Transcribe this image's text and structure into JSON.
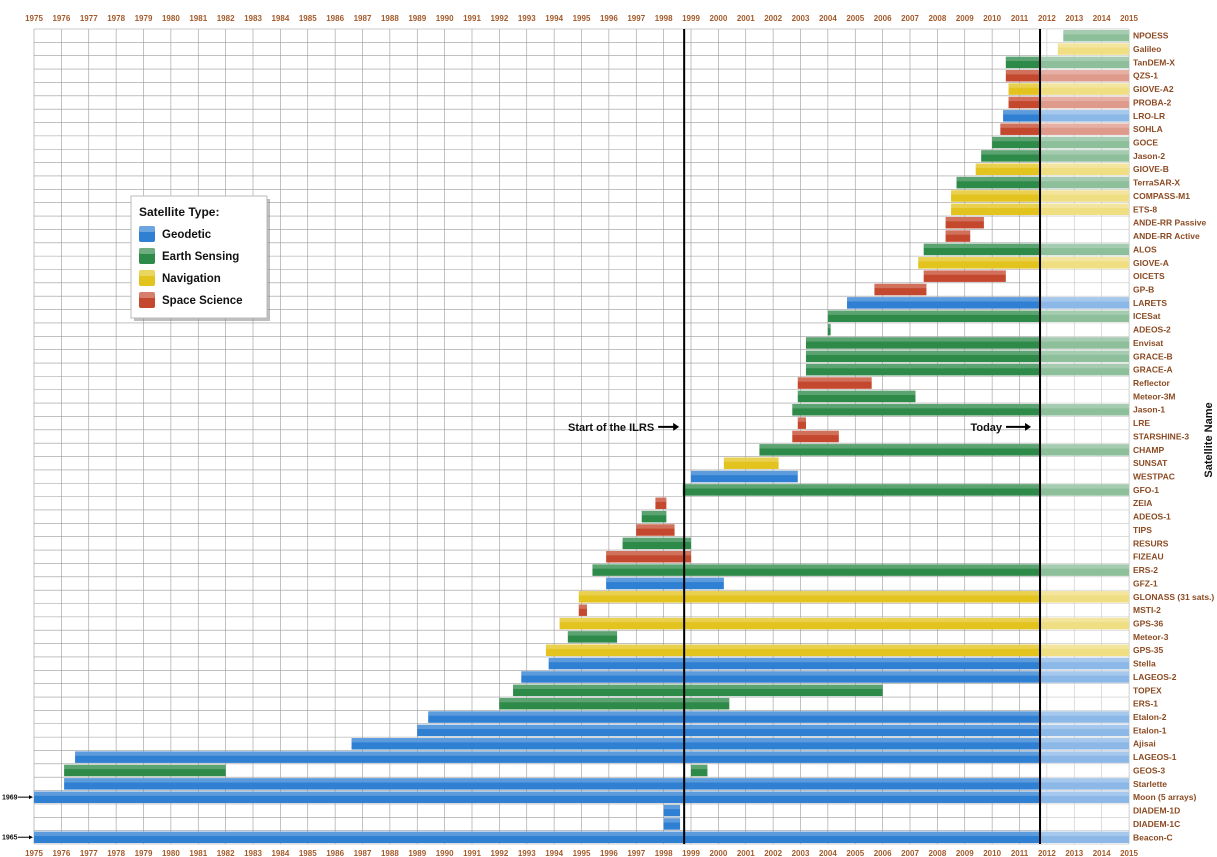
{
  "chart_data": {
    "type": "bar",
    "orientation": "horizontal-timeline",
    "ylabel": "Satellite Name",
    "x_ticks": [
      "1975",
      "1976",
      "1977",
      "1978",
      "1979",
      "1980",
      "1981",
      "1982",
      "1983",
      "1984",
      "1985",
      "1986",
      "1987",
      "1988",
      "1989",
      "1990",
      "1991",
      "1992",
      "1993",
      "1994",
      "1995",
      "1996",
      "1997",
      "1998",
      "1999",
      "2000",
      "2001",
      "2002",
      "2003",
      "2004",
      "2005",
      "2006",
      "2007",
      "2008",
      "2009",
      "2010",
      "2011",
      "2012",
      "2013",
      "2014",
      "2015"
    ],
    "xlim": [
      1975,
      2015
    ],
    "today": 2011.75,
    "ilrs_start": 1998.75,
    "grid": true,
    "legend": {
      "title": "Satellite Type:",
      "placement": "upper-left",
      "items": [
        {
          "key": "geodetic",
          "label": "Geodetic",
          "color": "#2f7fd3"
        },
        {
          "key": "earth",
          "label": "Earth Sensing",
          "color": "#2e8a48"
        },
        {
          "key": "nav",
          "label": "Navigation",
          "color": "#e3c31d"
        },
        {
          "key": "space",
          "label": "Space Science",
          "color": "#c4482d"
        }
      ]
    },
    "annotations": {
      "ilrs": "Start of the ILRS",
      "today": "Today",
      "moon_start": "1969",
      "beacon_start": "1965"
    },
    "satellites": [
      {
        "name": "NPOESS",
        "type": "earth",
        "start": 2012.6,
        "end": 2015
      },
      {
        "name": "Galileo",
        "type": "nav",
        "start": 2012.4,
        "end": 2015
      },
      {
        "name": "TanDEM-X",
        "type": "earth",
        "start": 2010.5,
        "end": 2015
      },
      {
        "name": "QZS-1",
        "type": "space",
        "start": 2010.5,
        "end": 2015
      },
      {
        "name": "GIOVE-A2",
        "type": "nav",
        "start": 2010.6,
        "end": 2015
      },
      {
        "name": "PROBA-2",
        "type": "space",
        "start": 2010.6,
        "end": 2015
      },
      {
        "name": "LRO-LR",
        "type": "geodetic",
        "start": 2010.4,
        "end": 2015
      },
      {
        "name": "SOHLA",
        "type": "space",
        "start": 2010.3,
        "end": 2015
      },
      {
        "name": "GOCE",
        "type": "earth",
        "start": 2010.0,
        "end": 2015
      },
      {
        "name": "Jason-2",
        "type": "earth",
        "start": 2009.6,
        "end": 2015
      },
      {
        "name": "GIOVE-B",
        "type": "nav",
        "start": 2009.4,
        "end": 2015
      },
      {
        "name": "TerraSAR-X",
        "type": "earth",
        "start": 2008.7,
        "end": 2015
      },
      {
        "name": "COMPASS-M1",
        "type": "nav",
        "start": 2008.5,
        "end": 2015
      },
      {
        "name": "ETS-8",
        "type": "nav",
        "start": 2008.5,
        "end": 2015
      },
      {
        "name": "ANDE-RR Passive",
        "type": "space",
        "start": 2008.3,
        "end": 2009.7
      },
      {
        "name": "ANDE-RR Active",
        "type": "space",
        "start": 2008.3,
        "end": 2009.2
      },
      {
        "name": "ALOS",
        "type": "earth",
        "start": 2007.5,
        "end": 2015
      },
      {
        "name": "GIOVE-A",
        "type": "nav",
        "start": 2007.3,
        "end": 2015
      },
      {
        "name": "OICETS",
        "type": "space",
        "start": 2007.5,
        "end": 2010.5
      },
      {
        "name": "GP-B",
        "type": "space",
        "start": 2005.7,
        "end": 2007.6
      },
      {
        "name": "LARETS",
        "type": "geodetic",
        "start": 2004.7,
        "end": 2015
      },
      {
        "name": "ICESat",
        "type": "earth",
        "start": 2004.0,
        "end": 2015
      },
      {
        "name": "ADEOS-2",
        "type": "earth",
        "start": 2004.0,
        "end": 2004.1
      },
      {
        "name": "Envisat",
        "type": "earth",
        "start": 2003.2,
        "end": 2015
      },
      {
        "name": "GRACE-B",
        "type": "earth",
        "start": 2003.2,
        "end": 2015
      },
      {
        "name": "GRACE-A",
        "type": "earth",
        "start": 2003.2,
        "end": 2015
      },
      {
        "name": "Reflector",
        "type": "space",
        "start": 2002.9,
        "end": 2005.6
      },
      {
        "name": "Meteor-3M",
        "type": "earth",
        "start": 2002.9,
        "end": 2007.2
      },
      {
        "name": "Jason-1",
        "type": "earth",
        "start": 2002.7,
        "end": 2015
      },
      {
        "name": "LRE",
        "type": "space",
        "start": 2002.9,
        "end": 2003.2
      },
      {
        "name": "STARSHINE-3",
        "type": "space",
        "start": 2002.7,
        "end": 2004.4
      },
      {
        "name": "CHAMP",
        "type": "earth",
        "start": 2001.5,
        "end": 2015
      },
      {
        "name": "SUNSAT",
        "type": "nav",
        "start": 2000.2,
        "end": 2002.2
      },
      {
        "name": "WESTPAC",
        "type": "geodetic",
        "start": 1999.0,
        "end": 2002.9
      },
      {
        "name": "GFO-1",
        "type": "earth",
        "start": 1998.7,
        "end": 2015
      },
      {
        "name": "ZEIA",
        "type": "space",
        "start": 1997.7,
        "end": 1998.1
      },
      {
        "name": "ADEOS-1",
        "type": "earth",
        "start": 1997.2,
        "end": 1998.1
      },
      {
        "name": "TIPS",
        "type": "space",
        "start": 1997.0,
        "end": 1998.4
      },
      {
        "name": "RESURS",
        "type": "earth",
        "start": 1996.5,
        "end": 1999.0
      },
      {
        "name": "FIZEAU",
        "type": "space",
        "start": 1995.9,
        "end": 1999.0
      },
      {
        "name": "ERS-2",
        "type": "earth",
        "start": 1995.4,
        "end": 2015
      },
      {
        "name": "GFZ-1",
        "type": "geodetic",
        "start": 1995.9,
        "end": 2000.2
      },
      {
        "name": "GLONASS (31 sats.)",
        "type": "nav",
        "start": 1994.9,
        "end": 2015
      },
      {
        "name": "MSTI-2",
        "type": "space",
        "start": 1994.9,
        "end": 1995.2
      },
      {
        "name": "GPS-36",
        "type": "nav",
        "start": 1994.2,
        "end": 2015
      },
      {
        "name": "Meteor-3",
        "type": "earth",
        "start": 1994.5,
        "end": 1996.3
      },
      {
        "name": "GPS-35",
        "type": "nav",
        "start": 1993.7,
        "end": 2015
      },
      {
        "name": "Stella",
        "type": "geodetic",
        "start": 1993.8,
        "end": 2015
      },
      {
        "name": "LAGEOS-2",
        "type": "geodetic",
        "start": 1992.8,
        "end": 2015
      },
      {
        "name": "TOPEX",
        "type": "earth",
        "start": 1992.5,
        "end": 2006.0
      },
      {
        "name": "ERS-1",
        "type": "earth",
        "start": 1992.0,
        "end": 2000.4
      },
      {
        "name": "Etalon-2",
        "type": "geodetic",
        "start": 1989.4,
        "end": 2015
      },
      {
        "name": "Etalon-1",
        "type": "geodetic",
        "start": 1989.0,
        "end": 2015
      },
      {
        "name": "Ajisai",
        "type": "geodetic",
        "start": 1986.6,
        "end": 2015
      },
      {
        "name": "LAGEOS-1",
        "type": "geodetic",
        "start": 1976.5,
        "end": 2015
      },
      {
        "name": "GEOS-3",
        "type": "earth",
        "start": 1976.1,
        "end": 1982.0
      },
      {
        "name": "Starlette",
        "type": "geodetic",
        "start": 1976.1,
        "end": 2015
      },
      {
        "name": "Moon (5 arrays)",
        "type": "geodetic",
        "start": 1975.0,
        "end": 2015
      },
      {
        "name": "DIADEM-1D",
        "type": "geodetic",
        "start": 1998.0,
        "end": 1998.6
      },
      {
        "name": "DIADEM-1C",
        "type": "geodetic",
        "start": 1998.0,
        "end": 1998.6
      },
      {
        "name": "Beacon-C",
        "type": "geodetic",
        "start": 1975.0,
        "end": 2015
      }
    ],
    "extra_segments": [
      {
        "name": "GEOS-3",
        "type": "earth",
        "start": 1999.0,
        "end": 1999.6
      }
    ]
  }
}
